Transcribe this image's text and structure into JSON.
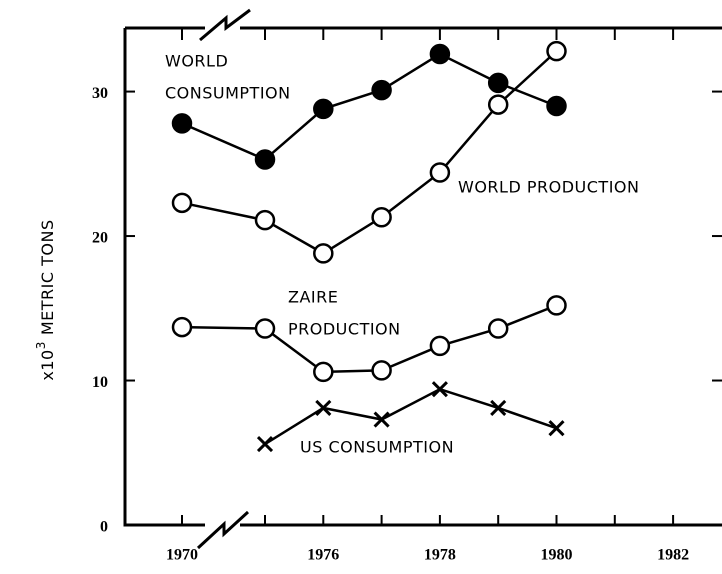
{
  "chart_data": {
    "type": "line",
    "ylabel": {
      "base": "x10",
      "sup": "3",
      "text": "METRIC TONS"
    },
    "x": [
      1970,
      1975,
      1976,
      1977,
      1978,
      1979,
      1980
    ],
    "xlim": [
      1969,
      1983
    ],
    "xticks": [
      1970,
      1976,
      1978,
      1980,
      1982
    ],
    "xminorticks": [
      1970,
      1975,
      1976,
      1977,
      1978,
      1979,
      1980,
      1981,
      1982
    ],
    "ylim": [
      0,
      34.4
    ],
    "yticks": [
      0,
      10,
      20,
      30
    ],
    "axis_break": true,
    "series": [
      {
        "label": [
          "WORLD",
          "CONSUMPTION"
        ],
        "marker": "filled-circle",
        "color": "#000000",
        "values": [
          27.8,
          25.3,
          28.8,
          30.1,
          32.6,
          30.6,
          29.0
        ]
      },
      {
        "label": [
          "WORLD PRODUCTION"
        ],
        "marker": "open-circle",
        "color": "#000000",
        "values": [
          22.3,
          21.1,
          18.8,
          21.3,
          24.4,
          29.1,
          32.8
        ]
      },
      {
        "label": [
          "ZAIRE",
          "PRODUCTION"
        ],
        "marker": "open-circle",
        "color": "#000000",
        "values": [
          13.7,
          13.6,
          10.6,
          10.7,
          12.4,
          13.6,
          15.2
        ]
      },
      {
        "label": [
          "US CONSUMPTION"
        ],
        "marker": "x",
        "color": "#000000",
        "values": [
          null,
          5.6,
          8.1,
          7.3,
          9.4,
          8.1,
          6.7
        ]
      }
    ]
  }
}
